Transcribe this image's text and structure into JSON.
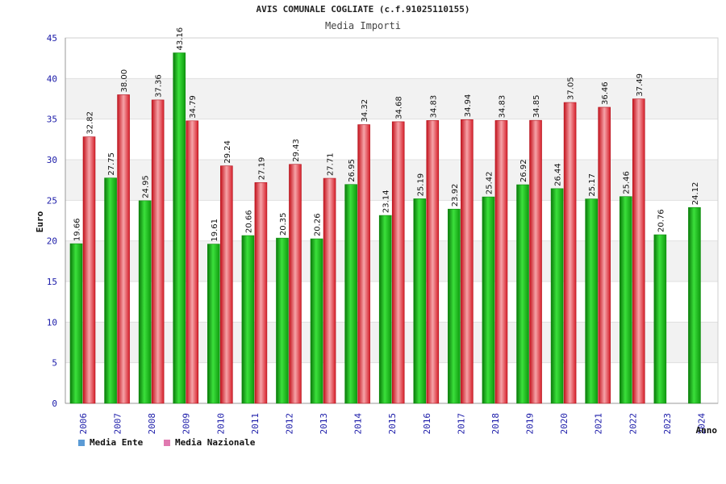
{
  "chart_data": {
    "type": "bar",
    "title": "AVIS COMUNALE COGLIATE (c.f.91025110155)",
    "subtitle": "Media Importi",
    "xlabel": "Anno",
    "ylabel": "Euro",
    "ylim": [
      0,
      45
    ],
    "yticks": [
      "0",
      "5",
      "10",
      "15",
      "20",
      "25",
      "30",
      "35",
      "40",
      "45"
    ],
    "grid": "horizontal bands",
    "legend_position": "bottom-left",
    "categories": [
      "2006",
      "2007",
      "2008",
      "2009",
      "2010",
      "2011",
      "2012",
      "2013",
      "2014",
      "2015",
      "2016",
      "2017",
      "2018",
      "2019",
      "2020",
      "2021",
      "2022",
      "2023",
      "2024"
    ],
    "series": [
      {
        "name": "Media Ente",
        "color": "#16b816",
        "legend_color": "#5b9bd5",
        "values": [
          19.66,
          27.75,
          24.95,
          43.16,
          19.61,
          20.66,
          20.35,
          20.26,
          26.95,
          23.14,
          25.19,
          23.92,
          25.42,
          26.92,
          26.44,
          25.17,
          25.46,
          20.76,
          24.12
        ],
        "labels": [
          "19.66",
          "27.75",
          "24.95",
          "43.16",
          "19.61",
          "20.66",
          "20.35",
          "20.26",
          "26.95",
          "23.14",
          "25.19",
          "23.92",
          "25.42",
          "26.92",
          "26.44",
          "25.17",
          "25.46",
          "20.76",
          "24.12"
        ]
      },
      {
        "name": "Media Nazionale",
        "color": "#e8303a",
        "legend_color": "#e07ab0",
        "values": [
          32.82,
          38.0,
          37.36,
          34.79,
          29.24,
          27.19,
          29.43,
          27.71,
          34.32,
          34.68,
          34.83,
          34.94,
          34.83,
          34.85,
          37.05,
          36.46,
          37.49,
          null,
          null
        ],
        "labels": [
          "32.82",
          "38.00",
          "37.36",
          "34.79",
          "29.24",
          "27.19",
          "29.43",
          "27.71",
          "34.32",
          "34.68",
          "34.83",
          "34.94",
          "34.83",
          "34.85",
          "37.05",
          "36.46",
          "37.49",
          "",
          ""
        ]
      }
    ]
  }
}
